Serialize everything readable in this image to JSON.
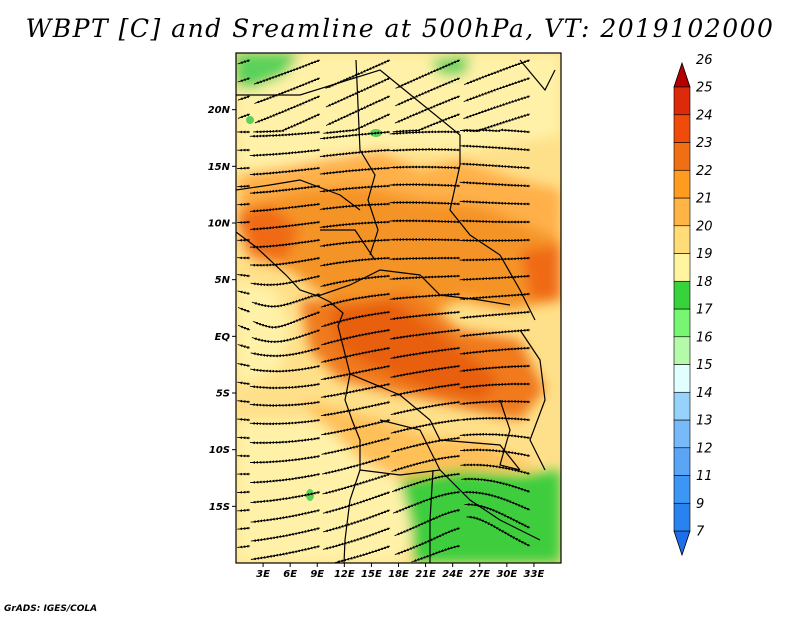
{
  "title": "WBPT [C] and Sreamline at 500hPa, VT: 2019102000",
  "credit": "GrADS: IGES/COLA",
  "map": {
    "lon_range": [
      0,
      36
    ],
    "lat_range": [
      -20,
      25
    ],
    "lon_ticks": [
      {
        "value": 3,
        "label": "3E"
      },
      {
        "value": 6,
        "label": "6E"
      },
      {
        "value": 9,
        "label": "9E"
      },
      {
        "value": 12,
        "label": "12E"
      },
      {
        "value": 15,
        "label": "15E"
      },
      {
        "value": 18,
        "label": "18E"
      },
      {
        "value": 21,
        "label": "21E"
      },
      {
        "value": 24,
        "label": "24E"
      },
      {
        "value": 27,
        "label": "27E"
      },
      {
        "value": 30,
        "label": "30E"
      },
      {
        "value": 33,
        "label": "33E"
      }
    ],
    "lat_ticks": [
      {
        "value": 20,
        "label": "20N"
      },
      {
        "value": 15,
        "label": "15N"
      },
      {
        "value": 10,
        "label": "10N"
      },
      {
        "value": 5,
        "label": "5N"
      },
      {
        "value": 0,
        "label": "EQ"
      },
      {
        "value": -5,
        "label": "5S"
      },
      {
        "value": -10,
        "label": "10S"
      },
      {
        "value": -15,
        "label": "15S"
      }
    ]
  },
  "colorbar": {
    "levels": [
      {
        "label": "7",
        "color": "#1e6eeb"
      },
      {
        "label": "9",
        "color": "#2882f0"
      },
      {
        "label": "11",
        "color": "#3c96f5"
      },
      {
        "label": "12",
        "color": "#5aa5f5"
      },
      {
        "label": "13",
        "color": "#78b9fa"
      },
      {
        "label": "14",
        "color": "#96d2fa"
      },
      {
        "label": "15",
        "color": "#e1ffff"
      },
      {
        "label": "16",
        "color": "#b4faaa"
      },
      {
        "label": "17",
        "color": "#78f573"
      },
      {
        "label": "18",
        "color": "#37d23c"
      },
      {
        "label": "19",
        "color": "#fff5a0"
      },
      {
        "label": "20",
        "color": "#ffdc78"
      },
      {
        "label": "21",
        "color": "#ffb446"
      },
      {
        "label": "22",
        "color": "#ff9b1e"
      },
      {
        "label": "23",
        "color": "#f06e14"
      },
      {
        "label": "24",
        "color": "#f04b0a"
      },
      {
        "label": "25",
        "color": "#dc2a0a"
      },
      {
        "label": "26",
        "color": "#b40000"
      }
    ]
  }
}
